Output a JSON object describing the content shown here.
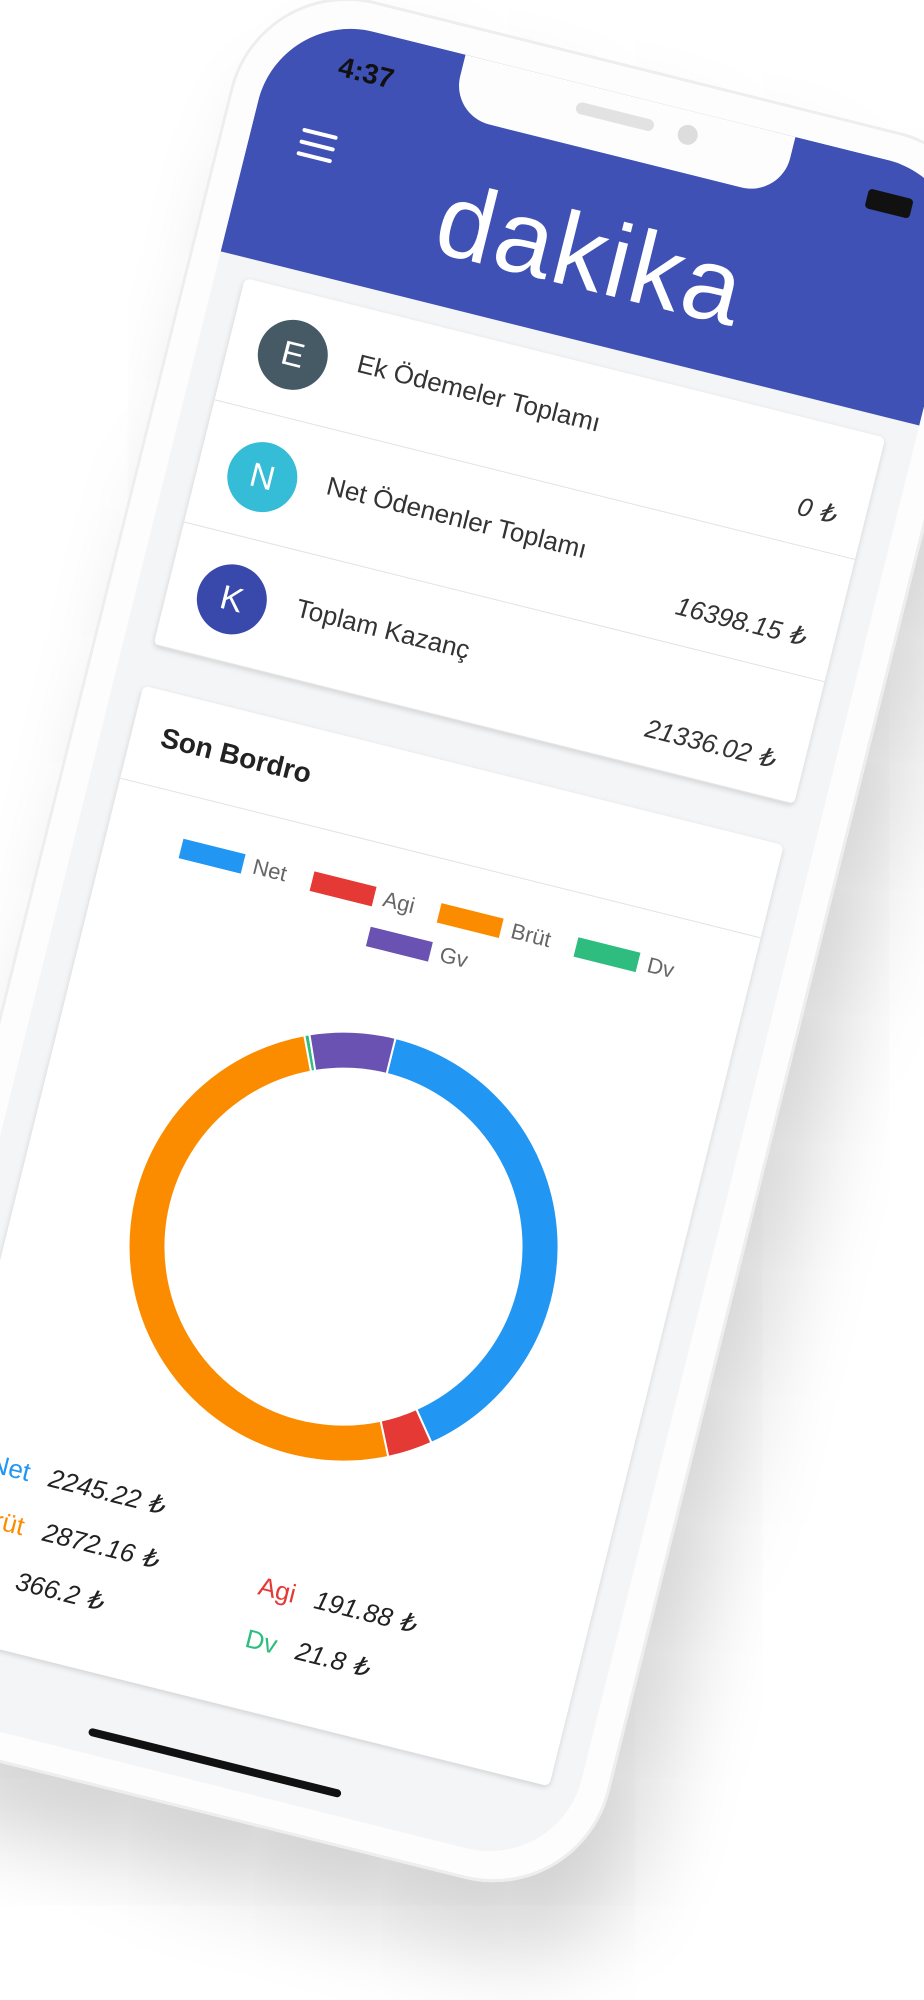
{
  "status": {
    "time": "4:37"
  },
  "header": {
    "title": "dakika"
  },
  "summary": [
    {
      "initial": "E",
      "label": "Ek Ödemeler Toplamı",
      "amount": "0 ₺",
      "color": "#455a64"
    },
    {
      "initial": "N",
      "label": "Net Ödenenler Toplamı",
      "amount": "16398.15 ₺",
      "color": "#35bcd6"
    },
    {
      "initial": "K",
      "label": "Toplam Kazanç",
      "amount": "21336.02 ₺",
      "color": "#3949ab"
    }
  ],
  "card": {
    "title": "Son Bordro"
  },
  "chart_data": {
    "type": "doughnut",
    "categories": [
      "Net",
      "Agi",
      "Brüt",
      "Dv",
      "Gv"
    ],
    "values": [
      2245.22,
      191.88,
      2872.16,
      21.8,
      366.2
    ],
    "value_labels": [
      "2245.22 ₺",
      "191.88 ₺",
      "2872.16 ₺",
      "21.8 ₺",
      "366.2 ₺"
    ],
    "colors": [
      "#2196f3",
      "#e53935",
      "#fb8c00",
      "#2ebd7f",
      "#6a52b3"
    ]
  }
}
